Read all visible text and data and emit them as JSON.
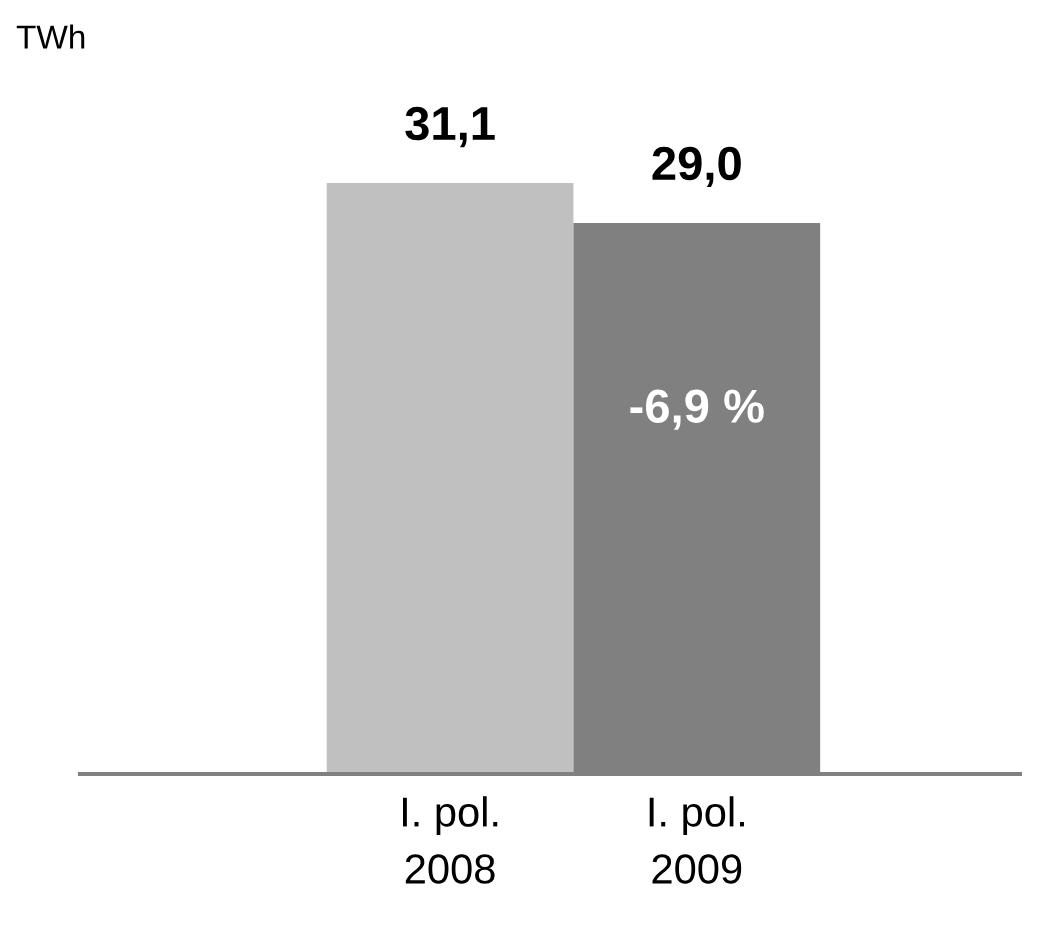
{
  "chart_data": {
    "type": "bar",
    "categories": [
      "I. pol.\n2008",
      "I. pol.\n2009"
    ],
    "values": [
      31.1,
      29.0
    ],
    "colors": [
      "#c0c0c0",
      "#808080"
    ],
    "value_labels": [
      "31,1",
      "29,0"
    ],
    "annotations": [
      "TWh",
      "-6,9 %"
    ],
    "grid": false
  }
}
